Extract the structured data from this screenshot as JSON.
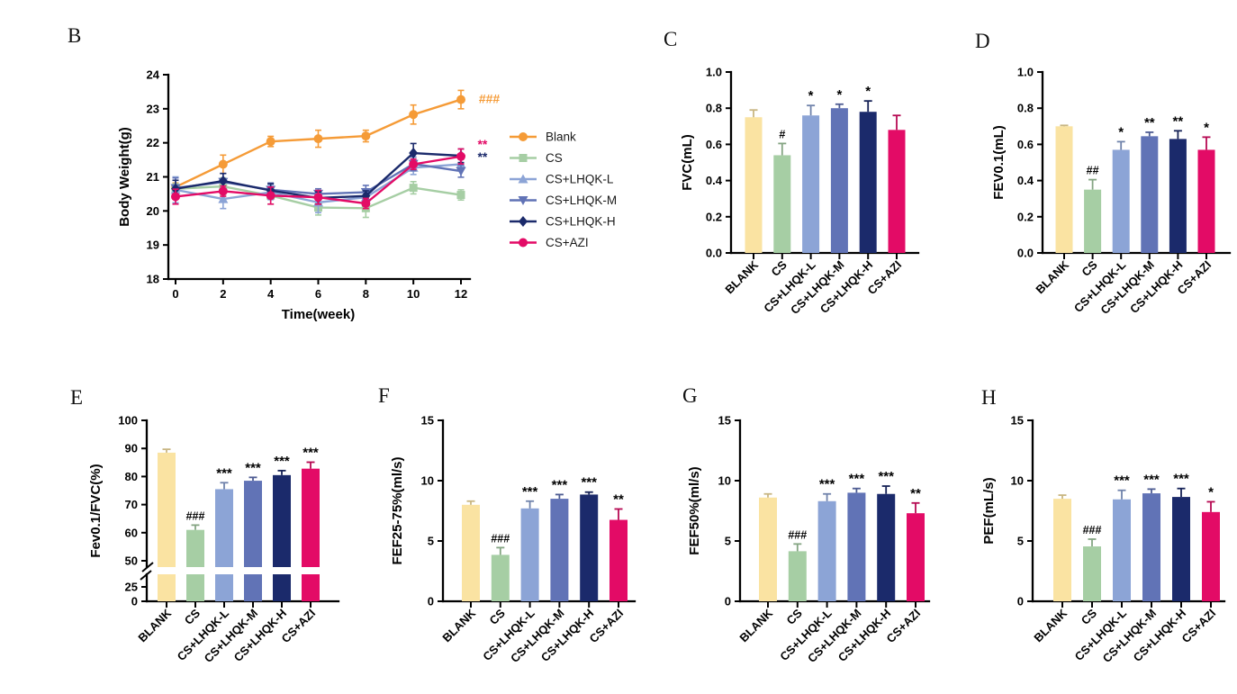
{
  "groups": [
    "BLANK",
    "CS",
    "CS+LHQK-L",
    "CS+LHQK-M",
    "CS+LHQK-H",
    "CS+AZI"
  ],
  "palette": {
    "blank_bar": "#FAE3A2",
    "cs_green": "#A6CEA4",
    "lhqk_l_blue": "#8CA4D6",
    "lhqk_m_blue": "#6173B6",
    "lhqk_h_navy": "#1B2A6B",
    "azi_crimson": "#E30B66",
    "blank_line_orange": "#F59B37",
    "axis_black": "#000000"
  },
  "chart_data": [
    {
      "panel": "B",
      "type": "line",
      "xlabel": "Time(week)",
      "ylabel": "Body Weight(g)",
      "x": [
        0,
        2,
        4,
        6,
        8,
        10,
        12
      ],
      "xticks": [
        0,
        2,
        4,
        6,
        8,
        10,
        12
      ],
      "yticks": [
        18,
        19,
        20,
        21,
        22,
        23,
        24
      ],
      "xlim": [
        0,
        12
      ],
      "ylim": [
        18,
        24
      ],
      "grid": false,
      "legend_position": "right",
      "series": [
        {
          "name": "Blank",
          "color": "#F59B37",
          "marker": "circle",
          "values": [
            20.7,
            21.37,
            22.04,
            22.12,
            22.2,
            22.83,
            23.27
          ],
          "errors": [
            0.12,
            0.27,
            0.15,
            0.25,
            0.17,
            0.28,
            0.27
          ]
        },
        {
          "name": "CS",
          "color": "#A6CEA4",
          "marker": "square",
          "values": [
            20.65,
            20.72,
            20.45,
            20.1,
            20.08,
            20.68,
            20.47
          ],
          "errors": [
            0.15,
            0.25,
            0.25,
            0.22,
            0.27,
            0.18,
            0.15
          ]
        },
        {
          "name": "CS+LHQK-L",
          "color": "#8CA4D6",
          "marker": "triangle-up",
          "values": [
            20.62,
            20.35,
            20.55,
            20.25,
            20.4,
            21.27,
            21.37
          ],
          "errors": [
            0.38,
            0.28,
            0.22,
            0.3,
            0.25,
            0.2,
            0.15
          ]
        },
        {
          "name": "CS+LHQK-M",
          "color": "#6173B6",
          "marker": "triangle-down",
          "values": [
            20.67,
            20.85,
            20.62,
            20.5,
            20.55,
            21.38,
            21.17
          ],
          "errors": [
            0.3,
            0.25,
            0.2,
            0.15,
            0.2,
            0.2,
            0.18
          ]
        },
        {
          "name": "CS+LHQK-H",
          "color": "#1B2A6B",
          "marker": "diamond",
          "values": [
            20.65,
            20.88,
            20.6,
            20.38,
            20.44,
            21.7,
            21.62
          ],
          "errors": [
            0.25,
            0.22,
            0.2,
            0.18,
            0.15,
            0.28,
            0.2
          ]
        },
        {
          "name": "CS+AZI",
          "color": "#E30B66",
          "marker": "circle",
          "values": [
            20.42,
            20.58,
            20.45,
            20.4,
            20.22,
            21.37,
            21.6
          ],
          "errors": [
            0.22,
            0.15,
            0.25,
            0.2,
            0.15,
            0.15,
            0.22
          ]
        }
      ],
      "annotations": [
        {
          "text": "###",
          "color": "#F59B37",
          "x": 12.75,
          "y": 23.3
        },
        {
          "text": "**",
          "color": "#E30B66",
          "x": 12.7,
          "y": 21.97
        },
        {
          "text": "**",
          "color": "#1B2A6B",
          "x": 12.7,
          "y": 21.6
        }
      ]
    },
    {
      "panel": "C",
      "type": "bar",
      "ylabel": "FVC(mL)",
      "categories": [
        "BLANK",
        "CS",
        "CS+LHQK-L",
        "CS+LHQK-M",
        "CS+LHQK-H",
        "CS+AZI"
      ],
      "values": [
        0.75,
        0.54,
        0.76,
        0.8,
        0.78,
        0.68
      ],
      "errors": [
        0.04,
        0.065,
        0.055,
        0.022,
        0.06,
        0.08
      ],
      "annotations": [
        "",
        "#",
        "*",
        "*",
        "*",
        ""
      ],
      "bar_colors": [
        "#FAE3A2",
        "#A6CEA4",
        "#8CA4D6",
        "#6173B6",
        "#1B2A6B",
        "#E30B66"
      ],
      "ylim": [
        0,
        1.0
      ],
      "yticks": [
        0,
        0.2,
        0.4,
        0.6,
        0.8,
        1.0
      ],
      "ytick_decimals": 1,
      "grid": false
    },
    {
      "panel": "D",
      "type": "bar",
      "ylabel": "FEV0.1(mL)",
      "categories": [
        "BLANK",
        "CS",
        "CS+LHQK-L",
        "CS+LHQK-M",
        "CS+LHQK-H",
        "CS+AZI"
      ],
      "values": [
        0.7,
        0.35,
        0.57,
        0.645,
        0.63,
        0.57
      ],
      "errors": [
        0.005,
        0.055,
        0.045,
        0.022,
        0.045,
        0.07
      ],
      "annotations": [
        "",
        "##",
        "*",
        "**",
        "**",
        "*"
      ],
      "bar_colors": [
        "#FAE3A2",
        "#A6CEA4",
        "#8CA4D6",
        "#6173B6",
        "#1B2A6B",
        "#E30B66"
      ],
      "ylim": [
        0,
        1.0
      ],
      "yticks": [
        0,
        0.2,
        0.4,
        0.6,
        0.8,
        1.0
      ],
      "ytick_decimals": 1,
      "grid": false
    },
    {
      "panel": "E",
      "type": "bar",
      "ylabel": "Fev0.1/FVC(%)",
      "categories": [
        "BLANK",
        "CS",
        "CS+LHQK-L",
        "CS+LHQK-M",
        "CS+LHQK-H",
        "CS+AZI"
      ],
      "values": [
        88.5,
        61.0,
        75.5,
        78.5,
        80.5,
        82.8
      ],
      "errors": [
        1.2,
        1.7,
        2.3,
        1.2,
        1.6,
        2.3
      ],
      "annotations": [
        "",
        "###",
        "***",
        "***",
        "***",
        "***"
      ],
      "bar_colors": [
        "#FAE3A2",
        "#A6CEA4",
        "#8CA4D6",
        "#6173B6",
        "#1B2A6B",
        "#E30B66"
      ],
      "ylim": [
        0,
        100
      ],
      "axis_break": {
        "lower_ticks": [
          0,
          25
        ],
        "upper_ticks": [
          50,
          60,
          70,
          80,
          90,
          100
        ],
        "lower_range": [
          0,
          25
        ],
        "upper_range": [
          50,
          100
        ]
      },
      "grid": false
    },
    {
      "panel": "F",
      "type": "bar",
      "ylabel": "FEF25-75%(ml/s)",
      "categories": [
        "BLANK",
        "CS",
        "CS+LHQK-L",
        "CS+LHQK-M",
        "CS+LHQK-H",
        "CS+AZI"
      ],
      "values": [
        8.0,
        3.85,
        7.7,
        8.5,
        8.85,
        6.75
      ],
      "errors": [
        0.3,
        0.6,
        0.6,
        0.35,
        0.2,
        0.9
      ],
      "annotations": [
        "",
        "###",
        "***",
        "***",
        "***",
        "**"
      ],
      "bar_colors": [
        "#FAE3A2",
        "#A6CEA4",
        "#8CA4D6",
        "#6173B6",
        "#1B2A6B",
        "#E30B66"
      ],
      "ylim": [
        0,
        15
      ],
      "yticks": [
        0,
        5,
        10,
        15
      ],
      "ytick_decimals": 0,
      "grid": false
    },
    {
      "panel": "G",
      "type": "bar",
      "ylabel": "FEF50%(ml/s)",
      "categories": [
        "BLANK",
        "CS",
        "CS+LHQK-L",
        "CS+LHQK-M",
        "CS+LHQK-H",
        "CS+AZI"
      ],
      "values": [
        8.6,
        4.15,
        8.3,
        9.0,
        8.9,
        7.3
      ],
      "errors": [
        0.3,
        0.6,
        0.6,
        0.35,
        0.65,
        0.85
      ],
      "annotations": [
        "",
        "###",
        "***",
        "***",
        "***",
        "**"
      ],
      "bar_colors": [
        "#FAE3A2",
        "#A6CEA4",
        "#8CA4D6",
        "#6173B6",
        "#1B2A6B",
        "#E30B66"
      ],
      "ylim": [
        0,
        15
      ],
      "yticks": [
        0,
        5,
        10,
        15
      ],
      "ytick_decimals": 0,
      "grid": false
    },
    {
      "panel": "H",
      "type": "bar",
      "ylabel": "PEF(mL/s)",
      "categories": [
        "BLANK",
        "CS",
        "CS+LHQK-L",
        "CS+LHQK-M",
        "CS+LHQK-H",
        "CS+AZI"
      ],
      "values": [
        8.5,
        4.55,
        8.45,
        8.95,
        8.65,
        7.4
      ],
      "errors": [
        0.3,
        0.6,
        0.75,
        0.35,
        0.7,
        0.85
      ],
      "annotations": [
        "",
        "###",
        "***",
        "***",
        "***",
        "*"
      ],
      "bar_colors": [
        "#FAE3A2",
        "#A6CEA4",
        "#8CA4D6",
        "#6173B6",
        "#1B2A6B",
        "#E30B66"
      ],
      "ylim": [
        0,
        15
      ],
      "yticks": [
        0,
        5,
        10,
        15
      ],
      "ytick_decimals": 0,
      "grid": false
    }
  ]
}
